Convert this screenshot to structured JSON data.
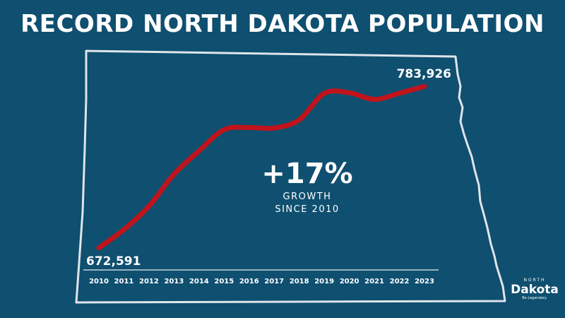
{
  "title": "RECORD NORTH DAKOTA POPULATION",
  "annotation": {
    "value": "+17%",
    "line1": "GROWTH",
    "line2": "SINCE 2010"
  },
  "logo": {
    "top": "NORTH",
    "name": "Dakota",
    "tagline": "Be Legendary."
  },
  "colors": {
    "background": "#0f4f70",
    "line": "#c0141c",
    "outline": "#dfe5ea"
  },
  "chart_data": {
    "type": "line",
    "title": "RECORD NORTH DAKOTA POPULATION",
    "xlabel": "",
    "ylabel": "",
    "categories": [
      "2010",
      "2011",
      "2012",
      "2013",
      "2014",
      "2015",
      "2016",
      "2017",
      "2018",
      "2019",
      "2020",
      "2021",
      "2022",
      "2023"
    ],
    "series": [
      {
        "values": [
          672591,
          685242,
          701345,
          723393,
          739482,
          754066,
          755548,
          755238,
          760900,
          779094,
          779518,
          774948,
          779261,
          783926
        ]
      }
    ],
    "data_labels": {
      "first": "672,591",
      "last": "783,926"
    },
    "ylim": [
      672000,
      785000
    ],
    "grid": false,
    "legend": "none"
  }
}
